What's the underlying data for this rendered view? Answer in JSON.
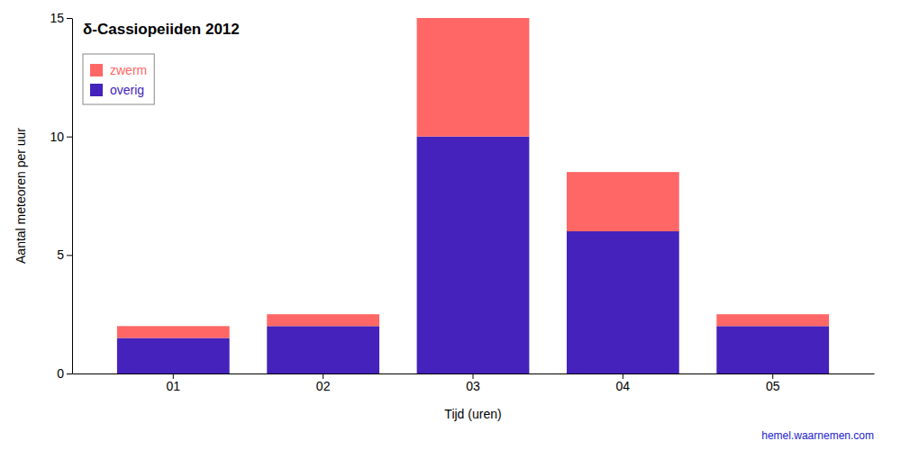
{
  "chart_data": {
    "type": "bar",
    "stacked": true,
    "title": "δ-Cassiopeiiden 2012",
    "x_label": "Tijd (uren)",
    "y_label": "Aantal meteoren per uur",
    "categories": [
      "01",
      "02",
      "03",
      "04",
      "05"
    ],
    "series": [
      {
        "name": "overig",
        "color": "#4422BB",
        "values": [
          1.5,
          2.0,
          10.0,
          6.0,
          2.0
        ]
      },
      {
        "name": "zwerm",
        "color": "#FF6666",
        "values": [
          0.5,
          0.5,
          5.0,
          2.5,
          0.5
        ]
      }
    ],
    "ylim": [
      0,
      15
    ],
    "yticks": [
      0,
      5,
      10,
      15
    ],
    "grid": false,
    "legend": "upper left",
    "annotations": [
      {
        "text": "hemel.waarnemen.com",
        "color": "#2222CC"
      }
    ]
  }
}
